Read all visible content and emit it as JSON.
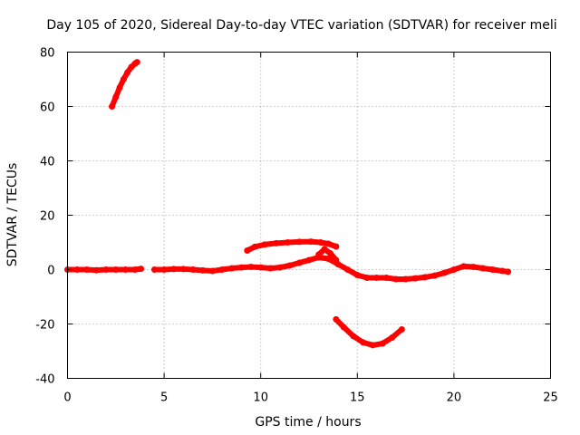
{
  "chart_data": {
    "type": "scatter",
    "title": "Day 105 of 2020, Sidereal Day-to-day VTEC variation (SDTVAR) for receiver meli",
    "xlabel": "GPS time / hours",
    "ylabel": "SDTVAR / TECUs",
    "xlim": [
      0,
      25
    ],
    "ylim": [
      -40,
      80
    ],
    "xticks": [
      0,
      5,
      10,
      15,
      20,
      25
    ],
    "yticks": [
      -40,
      -20,
      0,
      20,
      40,
      60,
      80
    ],
    "grid": true,
    "marker_color": "#ff0000",
    "series": [
      {
        "name": "main-trace-1",
        "x": [
          0.0,
          0.5,
          1.0,
          1.5,
          2.0,
          2.5,
          3.0,
          3.5,
          3.8
        ],
        "y": [
          0.0,
          0.0,
          0.0,
          -0.2,
          0.0,
          0.0,
          0.0,
          0.0,
          0.3
        ]
      },
      {
        "name": "main-trace-2",
        "x": [
          4.5,
          5.0,
          5.5,
          6.0,
          6.5,
          7.0,
          7.5,
          8.0,
          8.5,
          9.0,
          9.5,
          10.0,
          10.5,
          11.0,
          11.5,
          12.0,
          12.5,
          13.0,
          13.5,
          14.0,
          14.5,
          15.0,
          15.5,
          16.0,
          16.5,
          17.0,
          17.5,
          18.0,
          18.5,
          19.0,
          19.5,
          20.0,
          20.5,
          21.0,
          21.5,
          22.0,
          22.5,
          22.8
        ],
        "y": [
          0.0,
          0.0,
          0.2,
          0.2,
          0.0,
          -0.3,
          -0.5,
          0.0,
          0.5,
          0.8,
          1.0,
          0.8,
          0.5,
          0.8,
          1.5,
          2.5,
          3.5,
          4.5,
          4.0,
          2.0,
          0.0,
          -2.0,
          -3.0,
          -3.0,
          -3.0,
          -3.5,
          -3.5,
          -3.2,
          -2.8,
          -2.2,
          -1.2,
          0.0,
          1.2,
          1.0,
          0.5,
          0.0,
          -0.5,
          -0.8
        ]
      },
      {
        "name": "segment-high",
        "x": [
          2.3,
          2.5,
          2.7,
          2.9,
          3.1,
          3.3,
          3.5,
          3.6
        ],
        "y": [
          60,
          63.5,
          67,
          70,
          72.5,
          74.5,
          75.8,
          76.3
        ]
      },
      {
        "name": "segment-mid-upper",
        "x": [
          9.3,
          9.7,
          10.2,
          10.8,
          11.4,
          12.0,
          12.6,
          13.1,
          13.5,
          13.9
        ],
        "y": [
          7,
          8.4,
          9.2,
          9.7,
          10.0,
          10.2,
          10.3,
          10.0,
          9.5,
          8.5
        ]
      },
      {
        "name": "segment-low",
        "x": [
          13.9,
          14.3,
          14.8,
          15.3,
          15.8,
          16.3,
          16.8,
          17.3
        ],
        "y": [
          -18.3,
          -21.2,
          -24.5,
          -26.8,
          -27.8,
          -27.2,
          -25.0,
          -22.0
        ]
      },
      {
        "name": "segment-bump",
        "x": [
          13.0,
          13.3,
          13.6,
          13.9
        ],
        "y": [
          5.5,
          7.5,
          6.0,
          3.5
        ]
      }
    ]
  }
}
